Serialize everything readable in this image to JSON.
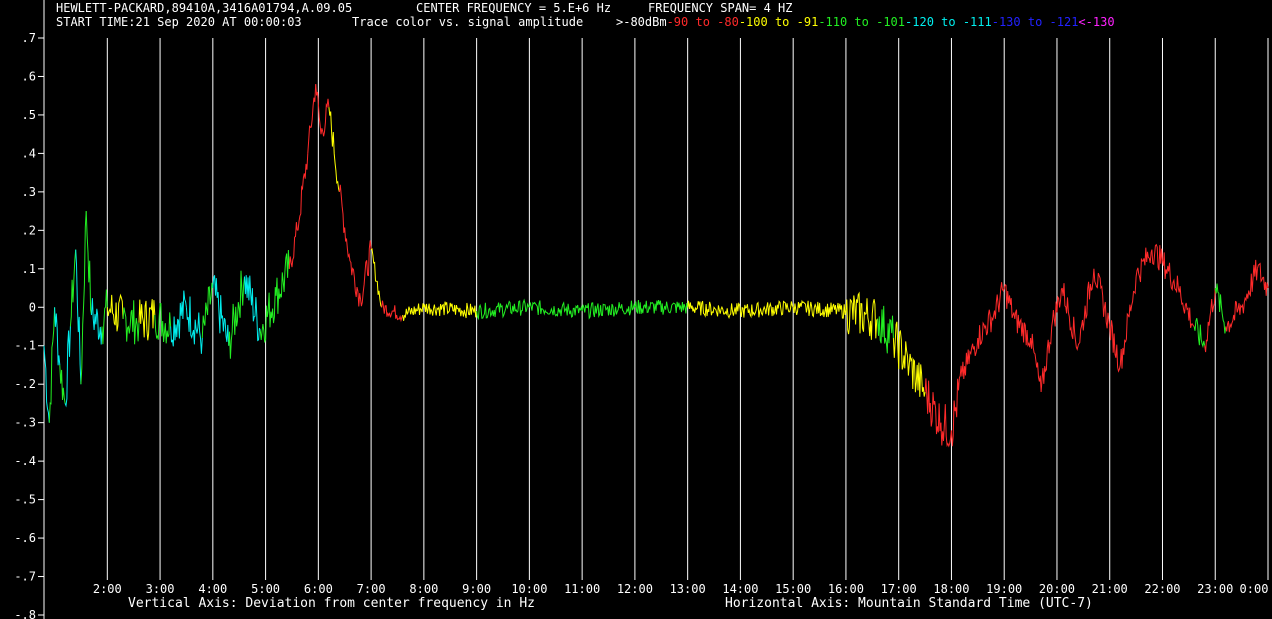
{
  "header": {
    "instrument": "HEWLETT-PACKARD,89410A,3416A01794,A.09.05",
    "center_freq": "CENTER FREQUENCY = 5.E+6 Hz",
    "span": "FREQUENCY SPAN= 4 HZ",
    "start_time": "START TIME:21 Sep 2020 AT 00:00:03",
    "legend_intro": "Trace color vs. signal amplitude",
    "legend": [
      {
        "label": ">-80dBm",
        "color": "#ffffff"
      },
      {
        "label": "-90 to -80",
        "color": "#ff2a2a"
      },
      {
        "label": "-100 to -91",
        "color": "#ffff00"
      },
      {
        "label": "-110 to -101",
        "color": "#22ee22"
      },
      {
        "label": "-120 to -111",
        "color": "#00eeee"
      },
      {
        "label": "-130 to -121",
        "color": "#2222ff"
      },
      {
        "label": "<-130",
        "color": "#ff22ff"
      }
    ]
  },
  "chart_data": {
    "type": "line",
    "title": "",
    "xlabel": "Horizontal Axis: Mountain Standard Time  (UTC-7)",
    "ylabel": "Vertical Axis: Deviation from center frequency in Hz",
    "ylim": [
      -0.8,
      0.7
    ],
    "y_ticks": [
      ".7",
      ".6",
      ".5",
      ".4",
      ".3",
      ".2",
      ".1",
      "0",
      "-.1",
      "-.2",
      "-.3",
      "-.4",
      "-.5",
      "-.6",
      "-.7",
      "-.8"
    ],
    "x_ticks": [
      "2:00",
      "3:00",
      "4:00",
      "5:00",
      "6:00",
      "7:00",
      "8:00",
      "9:00",
      "10:00",
      "11:00",
      "12:00",
      "13:00",
      "14:00",
      "15:00",
      "16:00",
      "17:00",
      "18:00",
      "19:00",
      "20:00",
      "21:00",
      "22:00",
      "23:00",
      "0:00"
    ],
    "xlim_hours": [
      0.8,
      24.0
    ],
    "grid": "vertical",
    "series_color_by_amplitude": true,
    "trace": [
      {
        "t": 0.8,
        "y": -0.1,
        "c": "#00eeee"
      },
      {
        "t": 0.9,
        "y": -0.3,
        "c": "#00eeee"
      },
      {
        "t": 1.0,
        "y": 0.0,
        "c": "#22ee22"
      },
      {
        "t": 1.1,
        "y": -0.15,
        "c": "#00eeee"
      },
      {
        "t": 1.2,
        "y": -0.25,
        "c": "#22ee22"
      },
      {
        "t": 1.3,
        "y": -0.05,
        "c": "#00eeee"
      },
      {
        "t": 1.4,
        "y": 0.15,
        "c": "#22ee22"
      },
      {
        "t": 1.5,
        "y": -0.2,
        "c": "#00eeee"
      },
      {
        "t": 1.6,
        "y": 0.25,
        "c": "#22ee22"
      },
      {
        "t": 1.7,
        "y": -0.02,
        "c": "#22ee22"
      },
      {
        "t": 1.9,
        "y": -0.05,
        "c": "#00eeee"
      },
      {
        "t": 2.0,
        "y": 0.0,
        "c": "#22ee22"
      },
      {
        "t": 2.3,
        "y": -0.03,
        "c": "#ffff00"
      },
      {
        "t": 2.6,
        "y": -0.04,
        "c": "#22ee22"
      },
      {
        "t": 2.9,
        "y": -0.02,
        "c": "#ffff00"
      },
      {
        "t": 3.2,
        "y": -0.05,
        "c": "#22ee22"
      },
      {
        "t": 3.5,
        "y": 0.0,
        "c": "#00eeee"
      },
      {
        "t": 3.8,
        "y": -0.08,
        "c": "#00eeee"
      },
      {
        "t": 4.0,
        "y": 0.05,
        "c": "#22ee22"
      },
      {
        "t": 4.3,
        "y": -0.1,
        "c": "#00eeee"
      },
      {
        "t": 4.6,
        "y": 0.08,
        "c": "#22ee22"
      },
      {
        "t": 4.9,
        "y": -0.06,
        "c": "#00eeee"
      },
      {
        "t": 5.2,
        "y": 0.03,
        "c": "#22ee22"
      },
      {
        "t": 5.45,
        "y": 0.1,
        "c": "#22ee22"
      },
      {
        "t": 5.6,
        "y": 0.2,
        "c": "#ff2a2a"
      },
      {
        "t": 5.8,
        "y": 0.4,
        "c": "#ff2a2a"
      },
      {
        "t": 5.95,
        "y": 0.58,
        "c": "#ff2a2a"
      },
      {
        "t": 6.05,
        "y": 0.45,
        "c": "#ff2a2a"
      },
      {
        "t": 6.2,
        "y": 0.52,
        "c": "#ff2a2a"
      },
      {
        "t": 6.4,
        "y": 0.3,
        "c": "#ffff00"
      },
      {
        "t": 6.6,
        "y": 0.12,
        "c": "#ff2a2a"
      },
      {
        "t": 6.8,
        "y": 0.02,
        "c": "#ff2a2a"
      },
      {
        "t": 7.0,
        "y": 0.15,
        "c": "#ff2a2a"
      },
      {
        "t": 7.2,
        "y": 0.0,
        "c": "#ffff00"
      },
      {
        "t": 7.6,
        "y": -0.02,
        "c": "#ff2a2a"
      },
      {
        "t": 8.0,
        "y": 0.0,
        "c": "#ffff00"
      },
      {
        "t": 9.0,
        "y": -0.01,
        "c": "#ffff00"
      },
      {
        "t": 10.0,
        "y": 0.0,
        "c": "#22ee22"
      },
      {
        "t": 11.0,
        "y": -0.01,
        "c": "#22ee22"
      },
      {
        "t": 12.0,
        "y": 0.0,
        "c": "#22ee22"
      },
      {
        "t": 13.0,
        "y": 0.0,
        "c": "#22ee22"
      },
      {
        "t": 14.0,
        "y": -0.01,
        "c": "#ffff00"
      },
      {
        "t": 15.0,
        "y": 0.0,
        "c": "#ffff00"
      },
      {
        "t": 16.0,
        "y": -0.01,
        "c": "#ffff00"
      },
      {
        "t": 16.6,
        "y": -0.03,
        "c": "#ffff00"
      },
      {
        "t": 16.9,
        "y": -0.08,
        "c": "#22ee22"
      },
      {
        "t": 17.2,
        "y": -0.15,
        "c": "#ffff00"
      },
      {
        "t": 17.5,
        "y": -0.22,
        "c": "#ffff00"
      },
      {
        "t": 17.8,
        "y": -0.3,
        "c": "#ff2a2a"
      },
      {
        "t": 18.0,
        "y": -0.32,
        "c": "#ff2a2a"
      },
      {
        "t": 18.2,
        "y": -0.18,
        "c": "#ff2a2a"
      },
      {
        "t": 18.5,
        "y": -0.08,
        "c": "#ff2a2a"
      },
      {
        "t": 18.8,
        "y": -0.02,
        "c": "#ff2a2a"
      },
      {
        "t": 19.0,
        "y": 0.05,
        "c": "#ff2a2a"
      },
      {
        "t": 19.2,
        "y": -0.03,
        "c": "#ff2a2a"
      },
      {
        "t": 19.5,
        "y": -0.08,
        "c": "#ff2a2a"
      },
      {
        "t": 19.7,
        "y": -0.22,
        "c": "#ff2a2a"
      },
      {
        "t": 19.9,
        "y": -0.05,
        "c": "#ff2a2a"
      },
      {
        "t": 20.1,
        "y": 0.05,
        "c": "#ff2a2a"
      },
      {
        "t": 20.4,
        "y": -0.1,
        "c": "#ff2a2a"
      },
      {
        "t": 20.7,
        "y": 0.1,
        "c": "#ff2a2a"
      },
      {
        "t": 21.0,
        "y": -0.05,
        "c": "#ff2a2a"
      },
      {
        "t": 21.2,
        "y": -0.15,
        "c": "#ff2a2a"
      },
      {
        "t": 21.5,
        "y": 0.08,
        "c": "#ff2a2a"
      },
      {
        "t": 21.8,
        "y": 0.15,
        "c": "#ff2a2a"
      },
      {
        "t": 22.0,
        "y": 0.12,
        "c": "#ff2a2a"
      },
      {
        "t": 22.3,
        "y": 0.05,
        "c": "#ff2a2a"
      },
      {
        "t": 22.6,
        "y": -0.05,
        "c": "#ff2a2a"
      },
      {
        "t": 22.8,
        "y": -0.1,
        "c": "#22ee22"
      },
      {
        "t": 23.0,
        "y": 0.05,
        "c": "#ff2a2a"
      },
      {
        "t": 23.2,
        "y": -0.05,
        "c": "#22ee22"
      },
      {
        "t": 23.5,
        "y": 0.0,
        "c": "#ff2a2a"
      },
      {
        "t": 23.8,
        "y": 0.1,
        "c": "#ff2a2a"
      },
      {
        "t": 24.0,
        "y": 0.05,
        "c": "#ff2a2a"
      }
    ]
  }
}
